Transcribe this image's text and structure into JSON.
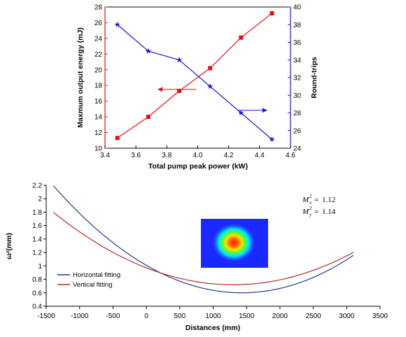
{
  "chart_data": [
    {
      "type": "line",
      "title": "",
      "xlabel": "Total pump peak power (kW)",
      "ylabel": "Maxmum output energy (mJ)",
      "ylabel_right": "Round-trips",
      "xlim": [
        3.4,
        4.6
      ],
      "ylim": [
        10,
        28
      ],
      "ylim_right": [
        24,
        40
      ],
      "x_ticks": [
        "3.4",
        "3.6",
        "3.8",
        "4.0",
        "4.2",
        "4.4",
        "4.6"
      ],
      "y_ticks": [
        "10",
        "12",
        "14",
        "16",
        "18",
        "20",
        "22",
        "24",
        "26",
        "28"
      ],
      "y_ticks_right": [
        "24",
        "26",
        "28",
        "30",
        "32",
        "34",
        "36",
        "38",
        "40"
      ],
      "x": [
        3.48,
        3.68,
        3.88,
        4.08,
        4.28,
        4.48
      ],
      "series": [
        {
          "axis": "left",
          "marker": "square",
          "color": "#e01010",
          "values": [
            11.3,
            14.0,
            17.3,
            20.2,
            24.1,
            27.2
          ]
        },
        {
          "axis": "right",
          "marker": "star",
          "color": "#1a1ad0",
          "values": [
            38.0,
            35.0,
            34.0,
            31.0,
            28.0,
            25.0
          ]
        }
      ],
      "annotations": [
        {
          "type": "arrow",
          "direction": "left",
          "color": "#e01010",
          "x_from": 3.99,
          "x_to": 3.74,
          "y": 17.5,
          "axis": "left"
        },
        {
          "type": "arrow",
          "direction": "right",
          "color": "#1a1ad0",
          "x_from": 4.26,
          "x_to": 4.45,
          "y": 28.3,
          "axis": "right"
        }
      ]
    },
    {
      "type": "line",
      "title": "",
      "xlabel": "Distances (mm)",
      "ylabel": "ω²(mm)",
      "xlim": [
        -1500,
        3500
      ],
      "ylim": [
        0.4,
        2.2
      ],
      "x_ticks": [
        "-1500",
        "-1000",
        "-500",
        "0",
        "500",
        "1000",
        "1500",
        "2000",
        "2500",
        "3000",
        "3500"
      ],
      "y_ticks": [
        "0.4",
        "0.6",
        "0.8",
        "1",
        "1.2",
        "1.4",
        "1.6",
        "1.8",
        "2",
        "2.2"
      ],
      "series": [
        {
          "name": "Horizontal fitting",
          "color": "#1f3a8a",
          "model": "w0 + a*(x - x0)^2",
          "w0": 0.6,
          "x0": 1430,
          "a": 2e-07,
          "x_range": [
            -1390,
            3100
          ]
        },
        {
          "name": "Vertical fitting",
          "color": "#b22a2a",
          "model": "w0 + a*(x - x0)^2",
          "w0": 0.72,
          "x0": 1300,
          "a": 1.487e-07,
          "x_range": [
            -1390,
            3100
          ]
        }
      ],
      "legend_position": "bottom-left",
      "annotations": [
        {
          "sub": "x",
          "value": "1.12"
        },
        {
          "sub": "y",
          "value": "1.14"
        }
      ],
      "inset": "beam-profile-heatmap"
    }
  ]
}
